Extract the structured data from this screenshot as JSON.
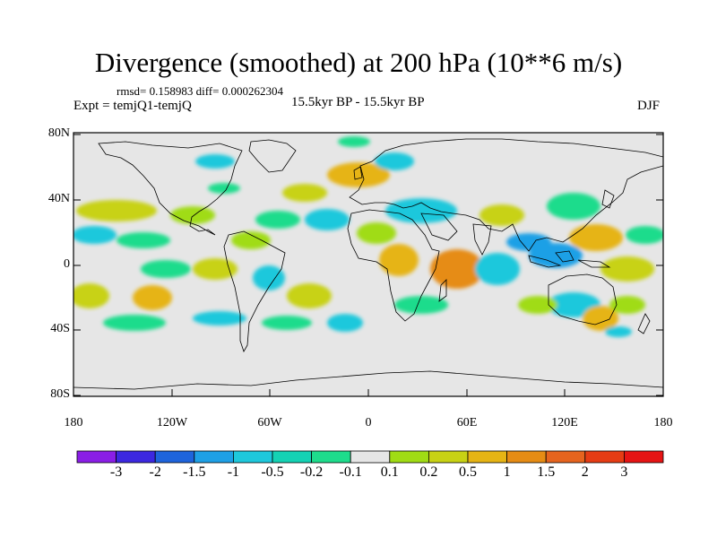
{
  "title": "Divergence (smoothed) at 200 hPa (10**6 m/s)",
  "stats": "rmsd= 0.158983 diff= 0.000262304",
  "experiment": "Expt = temjQ1-temjQ",
  "period": "15.5kyr BP - 15.5kyr BP",
  "season": "DJF",
  "lat_ticks": [
    "80N",
    "40N",
    "0",
    "40S",
    "80S"
  ],
  "lon_ticks": [
    "180",
    "120W",
    "60W",
    "0",
    "60E",
    "120E",
    "180"
  ],
  "colorbar": {
    "labels": [
      "-3",
      "-2",
      "-1.5",
      "-1",
      "-0.5",
      "-0.2",
      "-0.1",
      "0.1",
      "0.2",
      "0.5",
      "1",
      "1.5",
      "2",
      "3"
    ],
    "colors": [
      "#8a1ee6",
      "#3c28e0",
      "#1e64dc",
      "#1ea0e6",
      "#1ec8dc",
      "#14d2b4",
      "#1edc8c",
      "#e6e6e6",
      "#a0dc14",
      "#c8d214",
      "#e6b414",
      "#e68c14",
      "#e6641e",
      "#e63c14",
      "#e61414"
    ]
  },
  "colors": {
    "ocean_background": "#e6e6e6",
    "coastline": "#000000"
  }
}
